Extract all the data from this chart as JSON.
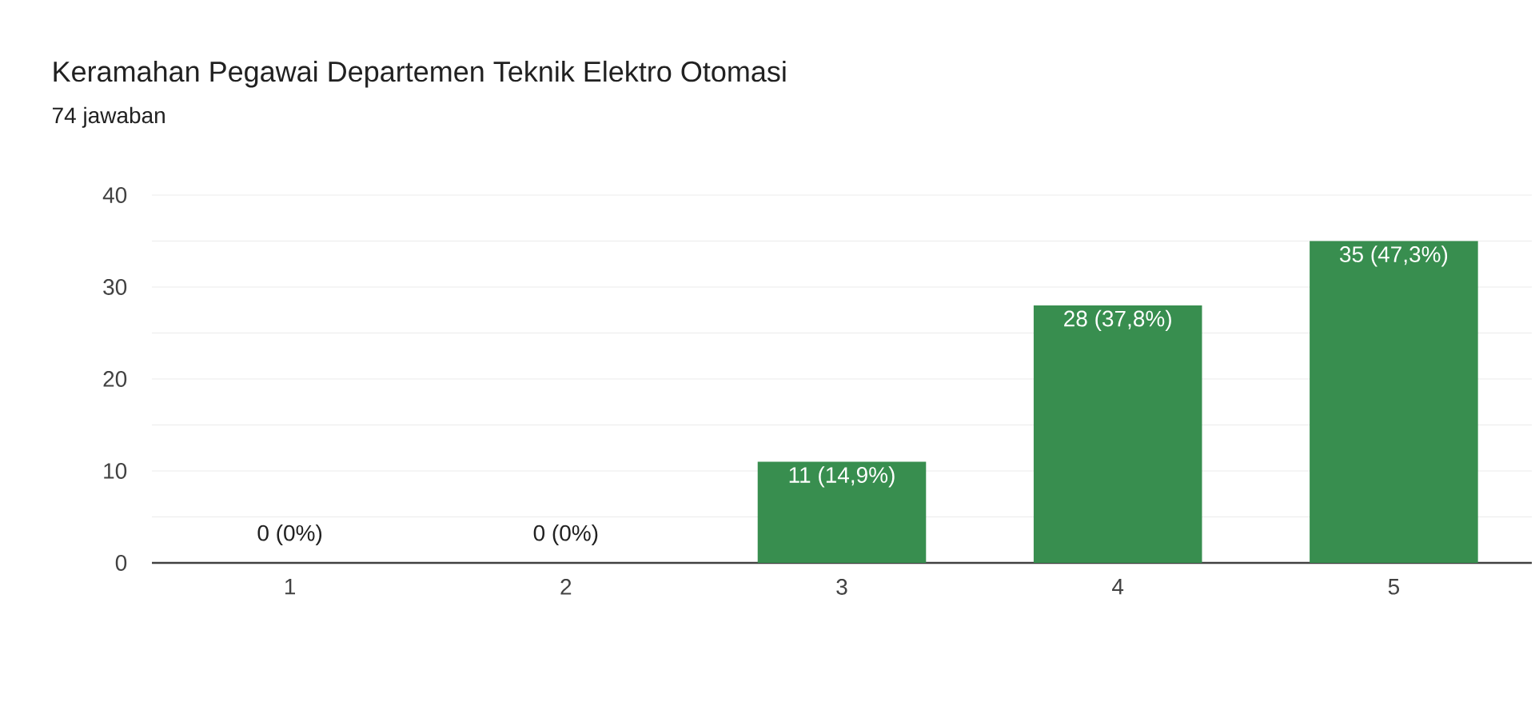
{
  "chart_data": {
    "type": "bar",
    "title": "Keramahan Pegawai Departemen Teknik Elektro Otomasi",
    "subtitle": "74 jawaban",
    "categories": [
      "1",
      "2",
      "3",
      "4",
      "5"
    ],
    "values": [
      0,
      0,
      11,
      28,
      35
    ],
    "value_labels": [
      "0 (0%)",
      "0 (0%)",
      "11 (14,9%)",
      "28 (37,8%)",
      "35 (47,3%)"
    ],
    "color": "#388e4f",
    "ylim": [
      0,
      40
    ],
    "yticks": [
      0,
      {
        "value": 5,
        "label": null
      },
      10,
      {
        "value": 15,
        "label": null
      },
      20,
      {
        "value": 25,
        "label": null
      },
      30,
      {
        "value": 35,
        "label": null
      },
      40
    ],
    "grid": true
  }
}
